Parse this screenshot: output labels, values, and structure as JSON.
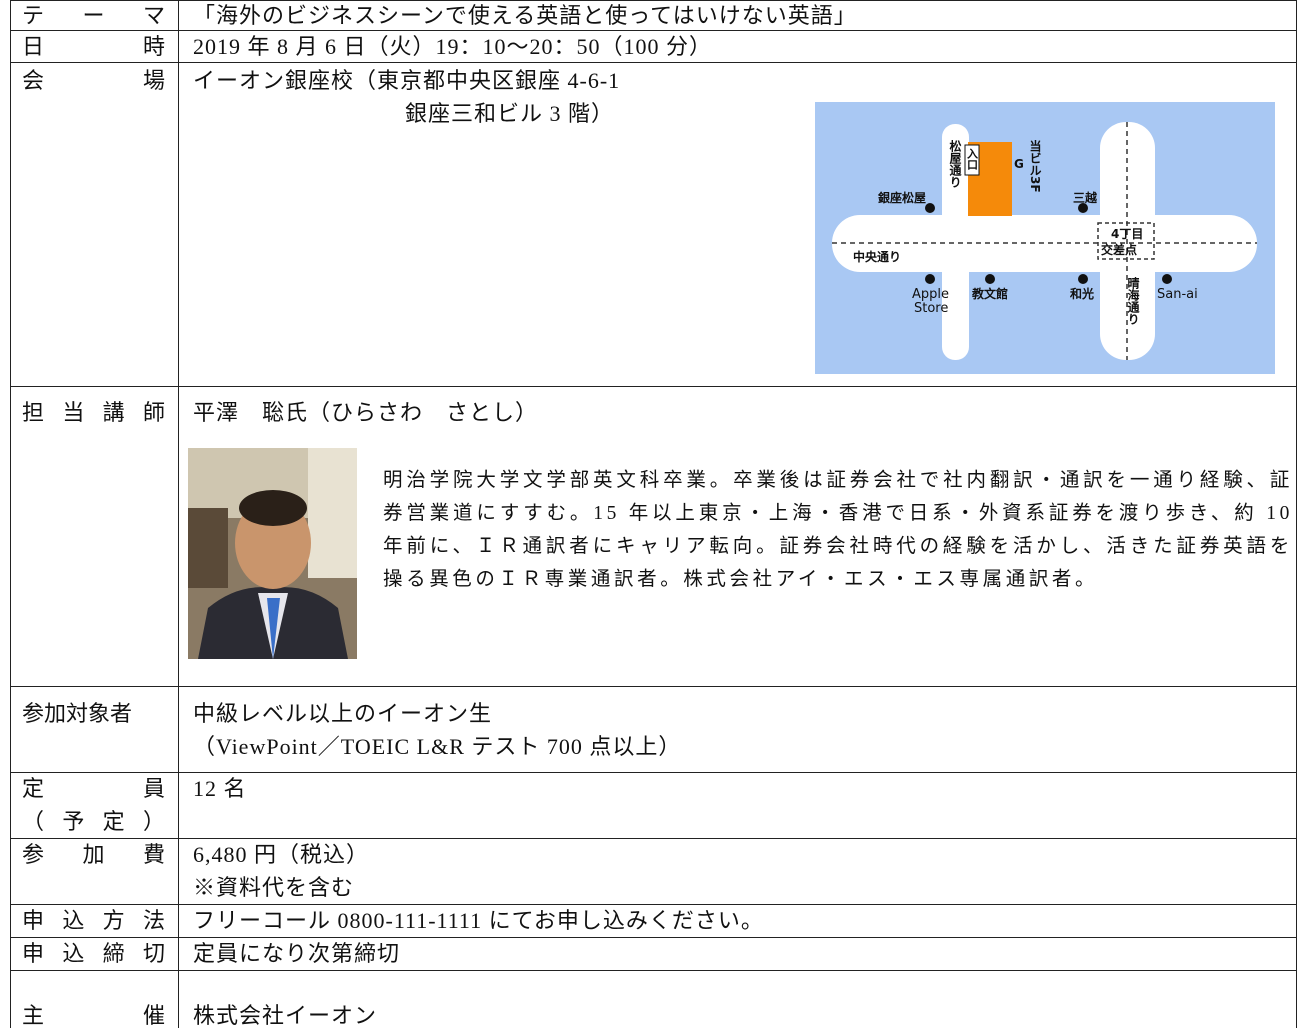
{
  "rows": [
    {
      "label": [
        "テーマ"
      ],
      "content": [
        "「海外のビジネスシーンで使える英語と使ってはいけない英語」"
      ]
    },
    {
      "label": [
        "日時"
      ],
      "content": [
        "2019 年 8 月 6 日（火）19：10〜20：50（100 分）"
      ]
    },
    {
      "label": [
        "会場"
      ],
      "content": [
        "イーオン銀座校（東京都中央区銀座 4-6-1",
        "銀座三和ビル 3 階）"
      ]
    },
    {
      "label": [
        "担当講師"
      ],
      "content": [
        "平澤　聡氏（ひらさわ　さとし）",
        "明治学院大学文学部英文科卒業。卒業後は証券会社で社内翻訳・通訳を一通り経験、証券営業道にすすむ。15 年以上東京・上海・香港で日系・外資系証券を渡り歩き、約 10 年前に、ＩＲ通訳者にキャリア転向。証券会社時代の経験を活かし、活きた証券英語を操る異色のＩＲ専業通訳者。株式会社アイ・エス・エス専属通訳者。"
      ]
    },
    {
      "label": [
        "参加対象者"
      ],
      "content": [
        "中級レベル以上のイーオン生",
        "（ViewPoint／TOEIC L&R テスト 700 点以上）"
      ]
    },
    {
      "label": [
        "定員",
        "（予定）"
      ],
      "content": [
        "12 名"
      ]
    },
    {
      "label": [
        "参加費"
      ],
      "content": [
        "6,480 円（税込）",
        "※資料代を含む"
      ]
    },
    {
      "label": [
        "申込方法"
      ],
      "content": [
        "フリーコール 0800-111-1111 にてお申し込みください。"
      ]
    },
    {
      "label": [
        "申込締切"
      ],
      "content": [
        "定員になり次第締切"
      ]
    },
    {
      "label": [
        "主催"
      ],
      "content": [
        "株式会社イーオン"
      ]
    }
  ],
  "map": {
    "labels": [
      "松屋通り",
      "入口",
      "当ビル3F",
      "銀座松屋",
      "三越",
      "4丁目",
      "交差点",
      "中央通り",
      "Apple",
      "Store",
      "教文館",
      "和光",
      "晴海通り",
      "San-ai"
    ]
  }
}
